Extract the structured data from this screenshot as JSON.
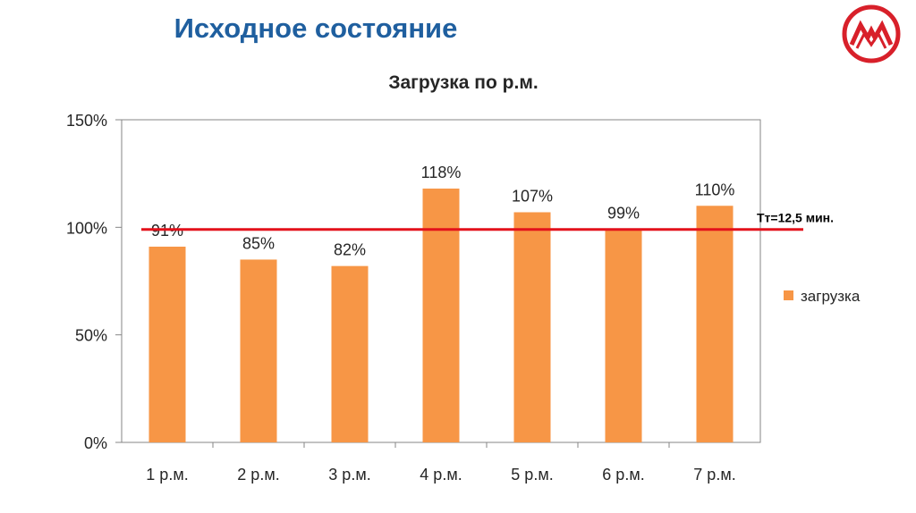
{
  "slide": {
    "title": "Исходное состояние"
  },
  "colors": {
    "title": "#1f5f9f",
    "bar": "#f79646",
    "reference_line": "#e3111b",
    "axis": "#868686",
    "logo": "#d8202a"
  },
  "logo": {
    "icon": "company-logo-icon"
  },
  "chart_data": {
    "type": "bar",
    "title": "Загрузка по р.м.",
    "categories": [
      "1 р.м.",
      "2 р.м.",
      "3 р.м.",
      "4 р.м.",
      "5 р.м.",
      "6 р.м.",
      "7 р.м."
    ],
    "series": [
      {
        "name": "загрузка",
        "values": [
          91,
          85,
          82,
          118,
          107,
          99,
          110
        ],
        "labels": [
          "91%",
          "85%",
          "82%",
          "118%",
          "107%",
          "99%",
          "110%"
        ],
        "color": "#f79646"
      }
    ],
    "ylim": [
      0,
      150
    ],
    "yticks": [
      0,
      50,
      100,
      150
    ],
    "ytick_labels": [
      "0%",
      "50%",
      "100%",
      "150%"
    ],
    "reference_line": {
      "value": 99,
      "label": "Тт=12,5 мин.",
      "color": "#e3111b"
    },
    "legend_position": "right",
    "grid": false
  }
}
